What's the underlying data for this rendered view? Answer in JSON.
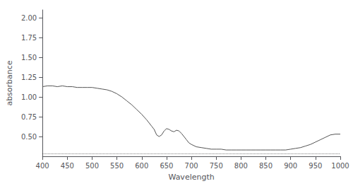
{
  "chart_data": {
    "type": "line",
    "xlabel": "Wavelength",
    "ylabel": "absorbance",
    "x": [
      400,
      410,
      420,
      430,
      440,
      450,
      460,
      470,
      480,
      490,
      500,
      510,
      520,
      530,
      540,
      550,
      560,
      570,
      580,
      590,
      600,
      610,
      620,
      625,
      630,
      635,
      640,
      645,
      650,
      655,
      660,
      665,
      670,
      675,
      680,
      685,
      690,
      695,
      700,
      710,
      720,
      730,
      740,
      750,
      760,
      770,
      780,
      790,
      800,
      810,
      820,
      830,
      840,
      850,
      860,
      870,
      880,
      890,
      900,
      910,
      920,
      930,
      940,
      950,
      960,
      970,
      980,
      990,
      1000
    ],
    "values": [
      1.13,
      1.14,
      1.14,
      1.13,
      1.14,
      1.13,
      1.13,
      1.12,
      1.12,
      1.12,
      1.12,
      1.11,
      1.1,
      1.09,
      1.07,
      1.04,
      1.0,
      0.95,
      0.9,
      0.84,
      0.78,
      0.71,
      0.63,
      0.59,
      0.52,
      0.5,
      0.52,
      0.57,
      0.6,
      0.59,
      0.57,
      0.56,
      0.58,
      0.57,
      0.54,
      0.5,
      0.46,
      0.42,
      0.4,
      0.37,
      0.36,
      0.35,
      0.34,
      0.34,
      0.34,
      0.33,
      0.33,
      0.33,
      0.33,
      0.33,
      0.33,
      0.33,
      0.33,
      0.33,
      0.33,
      0.33,
      0.33,
      0.33,
      0.34,
      0.35,
      0.36,
      0.38,
      0.4,
      0.43,
      0.46,
      0.49,
      0.52,
      0.53,
      0.53
    ],
    "color": "#555555",
    "xlim": [
      400,
      1000
    ],
    "xticks": [
      400,
      450,
      500,
      550,
      600,
      650,
      700,
      750,
      800,
      850,
      900,
      950,
      1000
    ],
    "ylim": [
      0.25,
      2.1
    ],
    "yticks": [
      {
        "value": 0.5,
        "label": "0.50"
      },
      0.75,
      {
        "value": 1.0,
        "label": "1.00"
      },
      1.25,
      {
        "value": 1.5,
        "label": "1.50"
      },
      1.75,
      {
        "value": 2.0,
        "label": "2.00"
      }
    ],
    "reference_line": {
      "y": 0.285,
      "line_style": "dotted",
      "color": "#000000"
    },
    "grid": false
  }
}
